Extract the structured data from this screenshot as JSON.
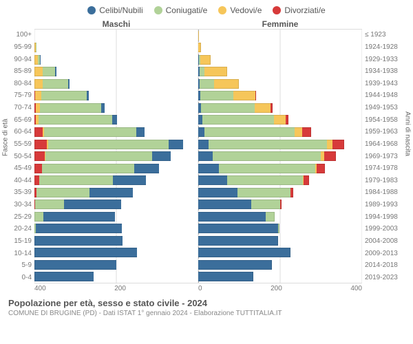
{
  "legend": [
    {
      "label": "Celibi/Nubili",
      "color": "#3b6e9b"
    },
    {
      "label": "Coniugati/e",
      "color": "#b1d298"
    },
    {
      "label": "Vedovi/e",
      "color": "#f6c65a"
    },
    {
      "label": "Divorziati/e",
      "color": "#d73a3a"
    }
  ],
  "gender": {
    "left": "Maschi",
    "right": "Femmine"
  },
  "y_left_title": "Fasce di età",
  "y_right_title": "Anni di nascita",
  "title": "Popolazione per età, sesso e stato civile - 2024",
  "subtitle": "COMUNE DI BRUGINE (PD) - Dati ISTAT 1° gennaio 2024 - Elaborazione TUTTITALIA.IT",
  "colors": {
    "celibi": "#3b6e9b",
    "coniugati": "#b1d298",
    "vedovi": "#f6c65a",
    "divorziati": "#d73a3a",
    "grid": "#eeeeee",
    "center": "#aaaaaa",
    "text": "#555555",
    "bg": "#ffffff"
  },
  "x_axis": {
    "max": 400,
    "ticks": [
      400,
      200,
      0,
      200,
      400
    ],
    "tick_step": 200
  },
  "age_bands": [
    {
      "label": "100+",
      "birth": "≤ 1923"
    },
    {
      "label": "95-99",
      "birth": "1924-1928"
    },
    {
      "label": "90-94",
      "birth": "1929-1933"
    },
    {
      "label": "85-89",
      "birth": "1934-1938"
    },
    {
      "label": "80-84",
      "birth": "1939-1943"
    },
    {
      "label": "75-79",
      "birth": "1944-1948"
    },
    {
      "label": "70-74",
      "birth": "1949-1953"
    },
    {
      "label": "65-69",
      "birth": "1954-1958"
    },
    {
      "label": "60-64",
      "birth": "1959-1963"
    },
    {
      "label": "55-59",
      "birth": "1964-1968"
    },
    {
      "label": "50-54",
      "birth": "1969-1973"
    },
    {
      "label": "45-49",
      "birth": "1974-1978"
    },
    {
      "label": "40-44",
      "birth": "1979-1983"
    },
    {
      "label": "35-39",
      "birth": "1984-1988"
    },
    {
      "label": "30-34",
      "birth": "1989-1993"
    },
    {
      "label": "25-29",
      "birth": "1994-1998"
    },
    {
      "label": "20-24",
      "birth": "1999-2003"
    },
    {
      "label": "15-19",
      "birth": "2004-2008"
    },
    {
      "label": "10-14",
      "birth": "2009-2013"
    },
    {
      "label": "5-9",
      "birth": "2014-2018"
    },
    {
      "label": "0-4",
      "birth": "2019-2023"
    }
  ],
  "data": {
    "male": [
      {
        "c": 0,
        "m": 0,
        "w": 0,
        "d": 0
      },
      {
        "c": 0,
        "m": 1,
        "w": 3,
        "d": 0
      },
      {
        "c": 1,
        "m": 6,
        "w": 8,
        "d": 0
      },
      {
        "c": 3,
        "m": 30,
        "w": 20,
        "d": 0
      },
      {
        "c": 4,
        "m": 62,
        "w": 20,
        "d": 0
      },
      {
        "c": 6,
        "m": 110,
        "w": 15,
        "d": 2
      },
      {
        "c": 8,
        "m": 150,
        "w": 10,
        "d": 3
      },
      {
        "c": 12,
        "m": 180,
        "w": 6,
        "d": 4
      },
      {
        "c": 20,
        "m": 225,
        "w": 4,
        "d": 20
      },
      {
        "c": 35,
        "m": 295,
        "w": 3,
        "d": 30
      },
      {
        "c": 45,
        "m": 260,
        "w": 2,
        "d": 25
      },
      {
        "c": 60,
        "m": 225,
        "w": 1,
        "d": 18
      },
      {
        "c": 80,
        "m": 180,
        "w": 0,
        "d": 12
      },
      {
        "c": 105,
        "m": 130,
        "w": 0,
        "d": 5
      },
      {
        "c": 140,
        "m": 70,
        "w": 0,
        "d": 2
      },
      {
        "c": 175,
        "m": 22,
        "w": 0,
        "d": 0
      },
      {
        "c": 210,
        "m": 3,
        "w": 0,
        "d": 0
      },
      {
        "c": 215,
        "m": 0,
        "w": 0,
        "d": 0
      },
      {
        "c": 250,
        "m": 0,
        "w": 0,
        "d": 0
      },
      {
        "c": 200,
        "m": 0,
        "w": 0,
        "d": 0
      },
      {
        "c": 145,
        "m": 0,
        "w": 0,
        "d": 0
      }
    ],
    "female": [
      {
        "c": 0,
        "m": 0,
        "w": 2,
        "d": 0
      },
      {
        "c": 0,
        "m": 0,
        "w": 7,
        "d": 0
      },
      {
        "c": 2,
        "m": 3,
        "w": 25,
        "d": 0
      },
      {
        "c": 3,
        "m": 12,
        "w": 55,
        "d": 0
      },
      {
        "c": 4,
        "m": 35,
        "w": 60,
        "d": 0
      },
      {
        "c": 5,
        "m": 80,
        "w": 55,
        "d": 2
      },
      {
        "c": 7,
        "m": 130,
        "w": 40,
        "d": 4
      },
      {
        "c": 10,
        "m": 175,
        "w": 28,
        "d": 8
      },
      {
        "c": 15,
        "m": 220,
        "w": 18,
        "d": 22
      },
      {
        "c": 25,
        "m": 290,
        "w": 12,
        "d": 30
      },
      {
        "c": 35,
        "m": 265,
        "w": 8,
        "d": 28
      },
      {
        "c": 50,
        "m": 235,
        "w": 4,
        "d": 20
      },
      {
        "c": 70,
        "m": 185,
        "w": 2,
        "d": 14
      },
      {
        "c": 95,
        "m": 130,
        "w": 1,
        "d": 6
      },
      {
        "c": 130,
        "m": 70,
        "w": 0,
        "d": 3
      },
      {
        "c": 165,
        "m": 22,
        "w": 0,
        "d": 0
      },
      {
        "c": 195,
        "m": 3,
        "w": 0,
        "d": 0
      },
      {
        "c": 195,
        "m": 0,
        "w": 0,
        "d": 0
      },
      {
        "c": 225,
        "m": 0,
        "w": 0,
        "d": 0
      },
      {
        "c": 180,
        "m": 0,
        "w": 0,
        "d": 0
      },
      {
        "c": 135,
        "m": 0,
        "w": 0,
        "d": 0
      }
    ]
  }
}
